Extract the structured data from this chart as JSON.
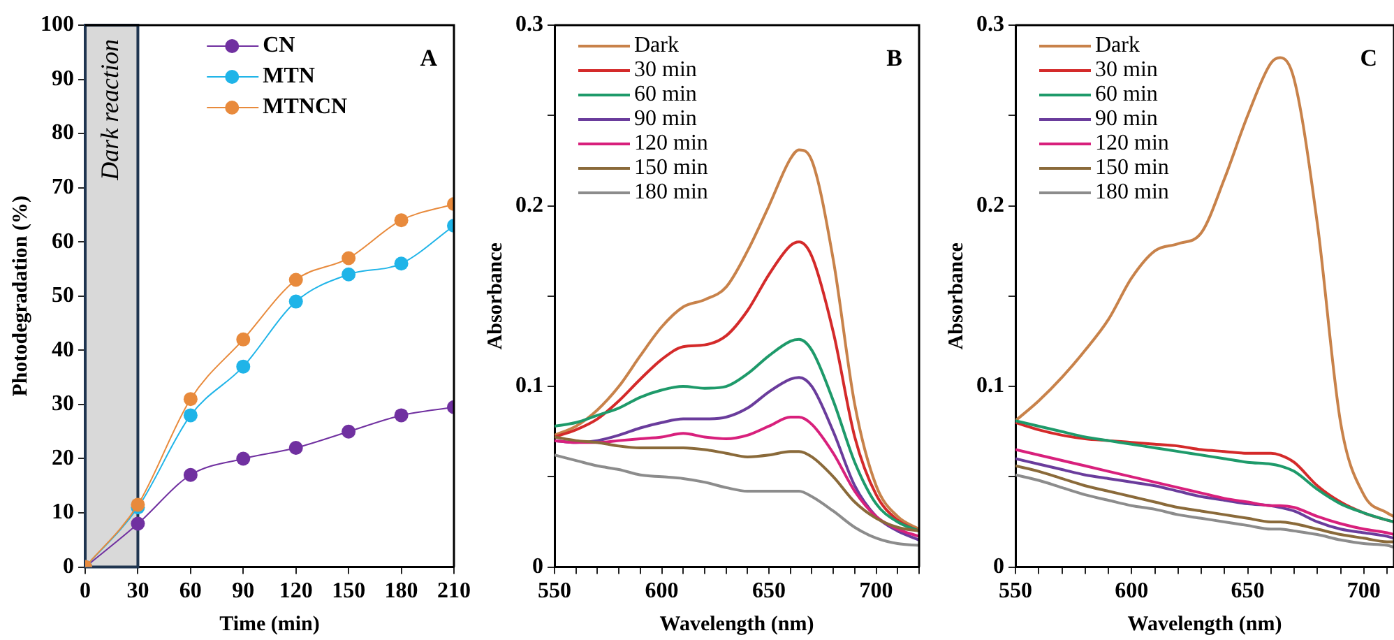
{
  "chart_data": [
    {
      "type": "line",
      "title": "A",
      "xlabel": "Time (min)",
      "ylabel": "Photodegradation (%)",
      "x": [
        0,
        30,
        60,
        90,
        120,
        150,
        180,
        210
      ],
      "xlim": [
        0,
        210
      ],
      "xticks": [
        0,
        30,
        60,
        90,
        120,
        150,
        180,
        210
      ],
      "ylim": [
        0,
        100
      ],
      "yticks": [
        0,
        10,
        20,
        30,
        40,
        50,
        60,
        70,
        80,
        90,
        100
      ],
      "marker": "circle",
      "legend": "top right",
      "bands": [
        {
          "axis": "x",
          "from": 0,
          "to": 30,
          "label": "Dark reaction",
          "color": "#d9d9d9"
        }
      ],
      "series": [
        {
          "name": "CN",
          "color": "#7030a0",
          "values": [
            0,
            8,
            17,
            20,
            22,
            25,
            28,
            29.5
          ]
        },
        {
          "name": "MTN",
          "color": "#1fb4e8",
          "values": [
            0,
            11,
            28,
            37,
            49,
            54,
            56,
            63
          ]
        },
        {
          "name": "MTNCN",
          "color": "#e88a3c",
          "values": [
            0,
            11.5,
            31,
            42,
            53,
            57,
            64,
            67
          ]
        }
      ]
    },
    {
      "type": "line",
      "title": "B",
      "xlabel": "Wavelength (nm)",
      "ylabel": "Absorbance",
      "x": [
        550,
        560,
        570,
        580,
        590,
        600,
        610,
        620,
        630,
        640,
        650,
        660,
        664,
        670,
        680,
        690,
        700,
        710,
        720
      ],
      "xlim": [
        550,
        720
      ],
      "xticks": [
        550,
        {
          "value": 560,
          "label": null
        },
        {
          "value": 570,
          "label": null
        },
        {
          "value": 580,
          "label": null
        },
        {
          "value": 590,
          "label": null
        },
        600,
        {
          "value": 610,
          "label": null
        },
        {
          "value": 620,
          "label": null
        },
        {
          "value": 630,
          "label": null
        },
        {
          "value": 640,
          "label": null
        },
        650,
        {
          "value": 660,
          "label": null
        },
        {
          "value": 670,
          "label": null
        },
        {
          "value": 680,
          "label": null
        },
        {
          "value": 690,
          "label": null
        },
        700,
        {
          "value": 710,
          "label": null
        },
        {
          "value": 720,
          "label": null
        }
      ],
      "ylim": [
        0,
        0.3
      ],
      "yticks": [
        0,
        {
          "value": 0.05,
          "label": null
        },
        0.1,
        {
          "value": 0.15,
          "label": null
        },
        0.2,
        {
          "value": 0.25,
          "label": null
        },
        0.3
      ],
      "legend": "top left",
      "series": [
        {
          "name": "Dark",
          "color": "#c8824a",
          "values": [
            0.073,
            0.078,
            0.087,
            0.1,
            0.117,
            0.133,
            0.144,
            0.148,
            0.155,
            0.175,
            0.2,
            0.226,
            0.231,
            0.225,
            0.17,
            0.09,
            0.045,
            0.028,
            0.021
          ]
        },
        {
          "name": "30 min",
          "color": "#d42a2a",
          "values": [
            0.072,
            0.076,
            0.082,
            0.092,
            0.104,
            0.115,
            0.122,
            0.123,
            0.128,
            0.142,
            0.162,
            0.178,
            0.18,
            0.172,
            0.13,
            0.072,
            0.04,
            0.026,
            0.02
          ]
        },
        {
          "name": "60 min",
          "color": "#1e9a6a",
          "values": [
            0.078,
            0.08,
            0.084,
            0.088,
            0.094,
            0.098,
            0.1,
            0.099,
            0.1,
            0.107,
            0.117,
            0.125,
            0.126,
            0.12,
            0.092,
            0.058,
            0.035,
            0.025,
            0.02
          ]
        },
        {
          "name": "90 min",
          "color": "#6a3c9c",
          "values": [
            0.07,
            0.069,
            0.07,
            0.073,
            0.077,
            0.08,
            0.082,
            0.082,
            0.083,
            0.088,
            0.097,
            0.104,
            0.105,
            0.1,
            0.075,
            0.045,
            0.028,
            0.02,
            0.015
          ]
        },
        {
          "name": "120 min",
          "color": "#d8207c",
          "values": [
            0.07,
            0.069,
            0.069,
            0.07,
            0.071,
            0.072,
            0.074,
            0.072,
            0.071,
            0.073,
            0.078,
            0.083,
            0.083,
            0.079,
            0.063,
            0.042,
            0.028,
            0.021,
            0.017
          ]
        },
        {
          "name": "150 min",
          "color": "#8a6a3a",
          "values": [
            0.072,
            0.07,
            0.069,
            0.067,
            0.066,
            0.066,
            0.066,
            0.065,
            0.063,
            0.061,
            0.062,
            0.064,
            0.064,
            0.061,
            0.05,
            0.036,
            0.027,
            0.022,
            0.02
          ]
        },
        {
          "name": "180 min",
          "color": "#8c8c8c",
          "values": [
            0.062,
            0.059,
            0.056,
            0.054,
            0.051,
            0.05,
            0.049,
            0.047,
            0.044,
            0.042,
            0.042,
            0.042,
            0.042,
            0.039,
            0.031,
            0.022,
            0.016,
            0.013,
            0.012
          ]
        }
      ]
    },
    {
      "type": "line",
      "title": "C",
      "xlabel": "Wavelength (nm)",
      "ylabel": "Absorbance",
      "x": [
        550,
        560,
        570,
        580,
        590,
        600,
        610,
        620,
        630,
        640,
        650,
        660,
        664,
        670,
        680,
        690,
        700,
        710,
        713
      ],
      "xlim": [
        550,
        713
      ],
      "xticks": [
        550,
        {
          "value": 560,
          "label": null
        },
        {
          "value": 570,
          "label": null
        },
        {
          "value": 580,
          "label": null
        },
        {
          "value": 590,
          "label": null
        },
        600,
        {
          "value": 610,
          "label": null
        },
        {
          "value": 620,
          "label": null
        },
        {
          "value": 630,
          "label": null
        },
        {
          "value": 640,
          "label": null
        },
        650,
        {
          "value": 660,
          "label": null
        },
        {
          "value": 670,
          "label": null
        },
        {
          "value": 680,
          "label": null
        },
        {
          "value": 690,
          "label": null
        },
        700,
        {
          "value": 710,
          "label": null
        }
      ],
      "ylim": [
        0,
        0.3
      ],
      "yticks": [
        0,
        {
          "value": 0.05,
          "label": null
        },
        0.1,
        {
          "value": 0.15,
          "label": null
        },
        0.2,
        {
          "value": 0.25,
          "label": null
        },
        0.3
      ],
      "legend": "top left",
      "series": [
        {
          "name": "Dark",
          "color": "#c8824a",
          "values": [
            0.081,
            0.092,
            0.105,
            0.12,
            0.137,
            0.16,
            0.175,
            0.179,
            0.185,
            0.215,
            0.25,
            0.279,
            0.282,
            0.27,
            0.19,
            0.08,
            0.04,
            0.03,
            0.028
          ]
        },
        {
          "name": "30 min",
          "color": "#d42a2a",
          "values": [
            0.08,
            0.076,
            0.073,
            0.071,
            0.07,
            0.069,
            0.068,
            0.067,
            0.065,
            0.064,
            0.063,
            0.063,
            0.062,
            0.058,
            0.045,
            0.036,
            0.03,
            0.026,
            0.025
          ]
        },
        {
          "name": "60 min",
          "color": "#1e9a6a",
          "values": [
            0.081,
            0.078,
            0.075,
            0.072,
            0.07,
            0.068,
            0.066,
            0.064,
            0.062,
            0.06,
            0.058,
            0.057,
            0.056,
            0.053,
            0.043,
            0.035,
            0.03,
            0.026,
            0.025
          ]
        },
        {
          "name": "90 min",
          "color": "#6a3c9c",
          "values": [
            0.06,
            0.057,
            0.054,
            0.051,
            0.049,
            0.047,
            0.045,
            0.042,
            0.039,
            0.037,
            0.035,
            0.034,
            0.033,
            0.031,
            0.025,
            0.021,
            0.019,
            0.017,
            0.016
          ]
        },
        {
          "name": "120 min",
          "color": "#d8207c",
          "values": [
            0.065,
            0.062,
            0.059,
            0.056,
            0.053,
            0.05,
            0.047,
            0.044,
            0.041,
            0.038,
            0.036,
            0.034,
            0.034,
            0.033,
            0.028,
            0.024,
            0.021,
            0.019,
            0.018
          ]
        },
        {
          "name": "150 min",
          "color": "#8a6a3a",
          "values": [
            0.056,
            0.053,
            0.049,
            0.045,
            0.042,
            0.039,
            0.036,
            0.033,
            0.031,
            0.029,
            0.027,
            0.025,
            0.025,
            0.024,
            0.021,
            0.018,
            0.016,
            0.014,
            0.014
          ]
        },
        {
          "name": "180 min",
          "color": "#8c8c8c",
          "values": [
            0.051,
            0.048,
            0.044,
            0.04,
            0.037,
            0.034,
            0.032,
            0.029,
            0.027,
            0.025,
            0.023,
            0.021,
            0.021,
            0.02,
            0.018,
            0.015,
            0.013,
            0.012,
            0.011
          ]
        }
      ]
    }
  ]
}
